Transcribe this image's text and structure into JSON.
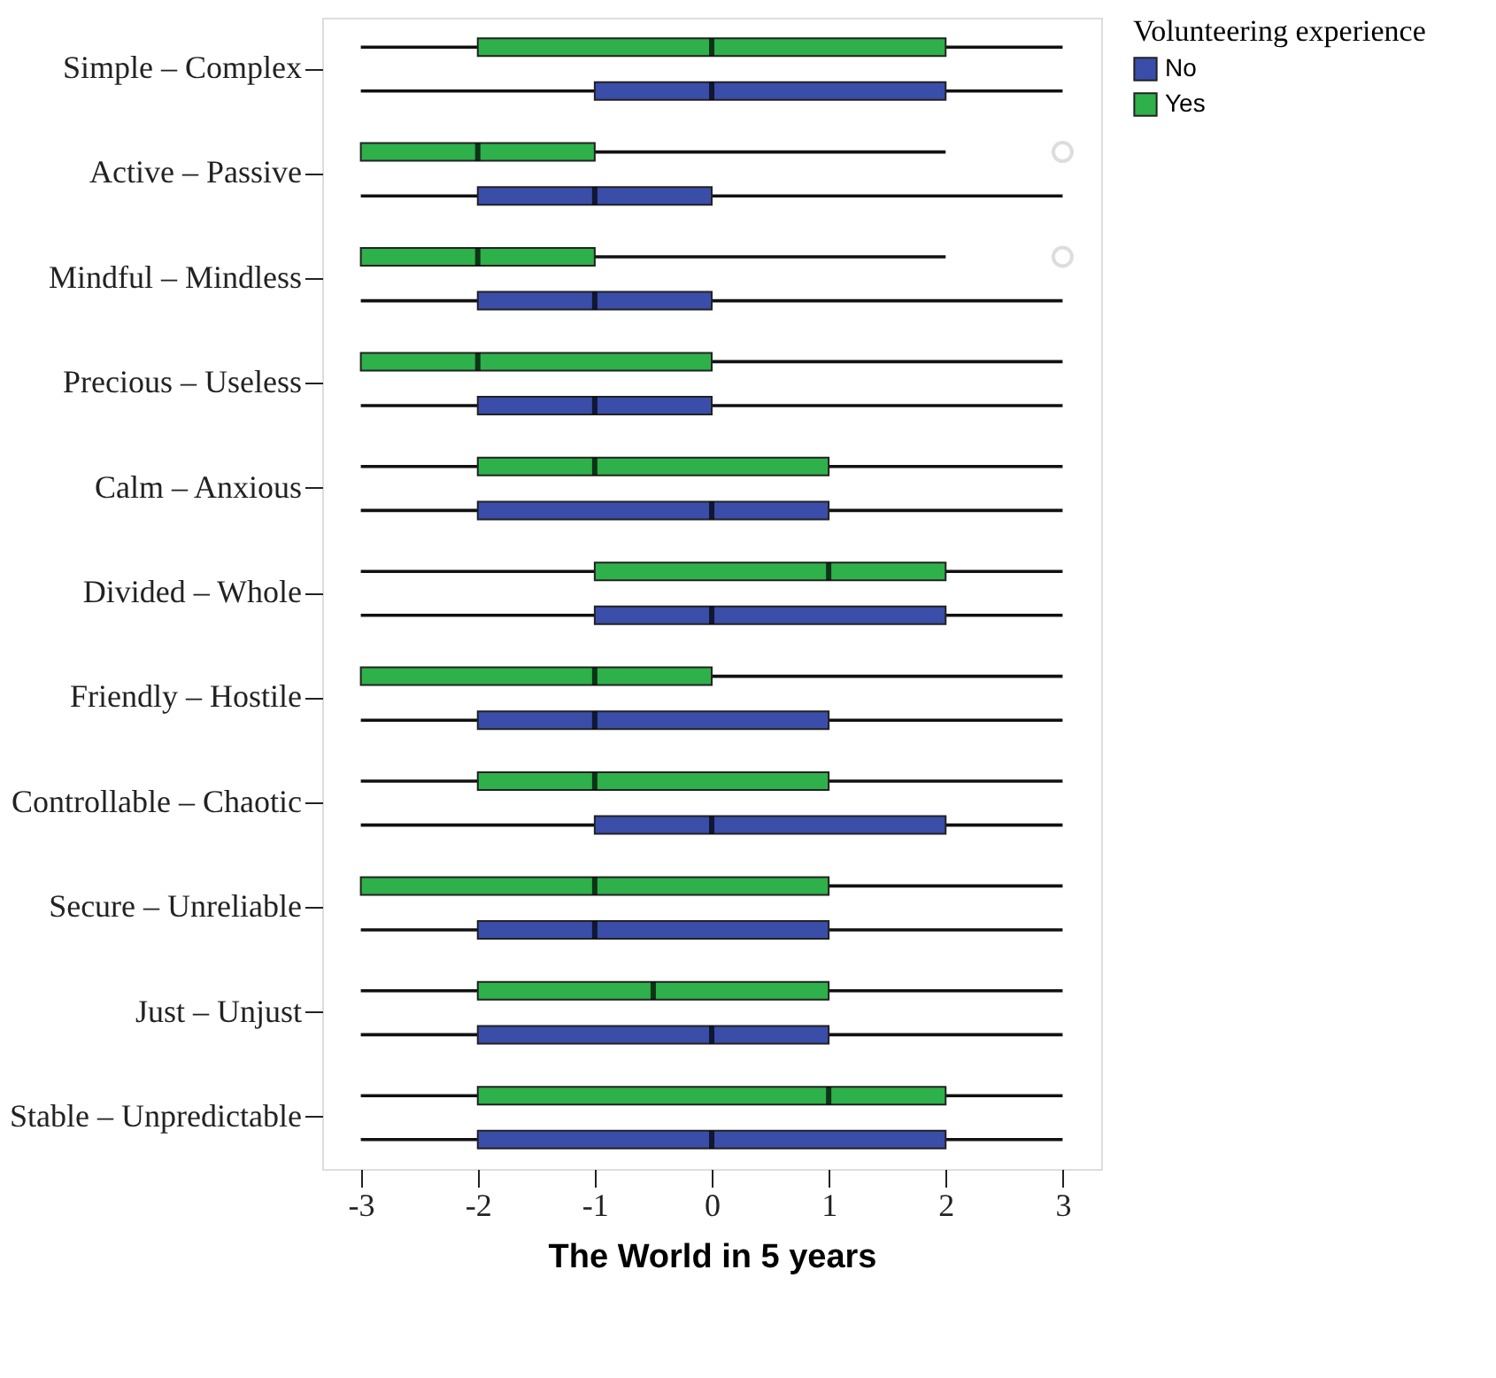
{
  "chart_data": {
    "type": "box",
    "orientation": "horizontal",
    "xlabel": "The World in 5 years",
    "legend_title": "Volunteering experience",
    "legend": "top right",
    "grid": false,
    "categories": [
      "Simple – Complex",
      "Active – Passive",
      "Mindful – Mindless",
      "Precious – Useless",
      "Calm – Anxious",
      "Divided – Whole",
      "Friendly – Hostile",
      "Controllable – Chaotic",
      "Secure – Unreliable",
      "Just – Unjust",
      "Stable – Unpredictable"
    ],
    "xlim": [
      -3.33,
      3.33
    ],
    "xticks": [
      -3,
      -2,
      -1,
      0,
      1,
      2,
      3
    ],
    "series": [
      {
        "name": "No",
        "color": "#3a4da8",
        "boxes": [
          {
            "low": -3,
            "q1": -1,
            "median": 0,
            "q3": 2,
            "high": 3
          },
          {
            "low": -3,
            "q1": -2,
            "median": -1,
            "q3": 0,
            "high": 3
          },
          {
            "low": -3,
            "q1": -2,
            "median": -1,
            "q3": 0,
            "high": 3
          },
          {
            "low": -3,
            "q1": -2,
            "median": -1,
            "q3": 0,
            "high": 3
          },
          {
            "low": -3,
            "q1": -2,
            "median": 0,
            "q3": 1,
            "high": 3
          },
          {
            "low": -3,
            "q1": -1,
            "median": 0,
            "q3": 2,
            "high": 3
          },
          {
            "low": -3,
            "q1": -2,
            "median": -1,
            "q3": 1,
            "high": 3
          },
          {
            "low": -3,
            "q1": -1,
            "median": 0,
            "q3": 2,
            "high": 3
          },
          {
            "low": -3,
            "q1": -2,
            "median": -1,
            "q3": 1,
            "high": 3
          },
          {
            "low": -3,
            "q1": -2,
            "median": 0,
            "q3": 1,
            "high": 3
          },
          {
            "low": -3,
            "q1": -2,
            "median": 0,
            "q3": 2,
            "high": 3
          }
        ]
      },
      {
        "name": "Yes",
        "color": "#2eb04a",
        "boxes": [
          {
            "low": -3,
            "q1": -2,
            "median": 0,
            "q3": 2,
            "high": 3
          },
          {
            "low": -3,
            "q1": -3,
            "median": -2,
            "q3": -1,
            "high": 2,
            "outliers": [
              3
            ]
          },
          {
            "low": -3,
            "q1": -3,
            "median": -2,
            "q3": -1,
            "high": 2,
            "outliers": [
              3
            ]
          },
          {
            "low": -3,
            "q1": -3,
            "median": -2,
            "q3": 0,
            "high": 3
          },
          {
            "low": -3,
            "q1": -2,
            "median": -1,
            "q3": 1,
            "high": 3
          },
          {
            "low": -3,
            "q1": -1,
            "median": 1,
            "q3": 2,
            "high": 3
          },
          {
            "low": -3,
            "q1": -3,
            "median": -1,
            "q3": 0,
            "high": 3
          },
          {
            "low": -3,
            "q1": -2,
            "median": -1,
            "q3": 1,
            "high": 3
          },
          {
            "low": -3,
            "q1": -3,
            "median": -1,
            "q3": 1,
            "high": 3
          },
          {
            "low": -3,
            "q1": -2,
            "median": -0.5,
            "q3": 1,
            "high": 3
          },
          {
            "low": -3,
            "q1": -2,
            "median": 1,
            "q3": 2,
            "high": 3
          }
        ]
      }
    ]
  }
}
